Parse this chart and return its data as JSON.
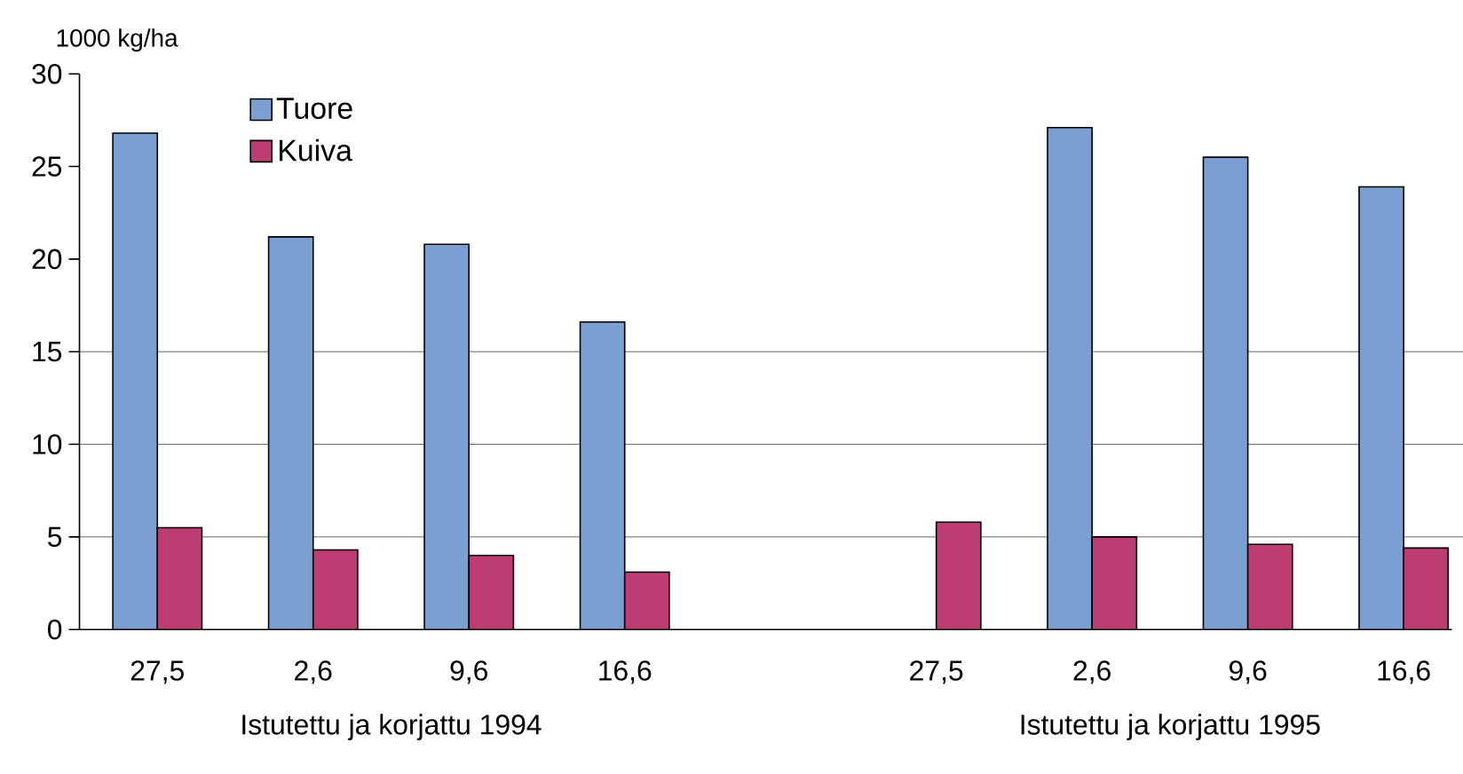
{
  "chart_data": {
    "type": "bar",
    "ylabel": "1000 kg/ha",
    "categories": [
      "27,5",
      "2,6",
      "9,6",
      "16,6",
      null,
      "27,5",
      "2,6",
      "9,6",
      "16,6"
    ],
    "series": [
      {
        "name": "Tuore",
        "color": "#7b9fd1",
        "values": [
          26.8,
          21.2,
          20.8,
          16.6,
          null,
          null,
          27.1,
          25.5,
          23.9
        ]
      },
      {
        "name": "Kuiva",
        "color": "#bd3c71",
        "values": [
          5.5,
          4.3,
          4.0,
          3.1,
          null,
          5.8,
          5.0,
          4.6,
          4.4
        ]
      }
    ],
    "ylim": [
      0,
      30
    ],
    "yticks": [
      0,
      5,
      10,
      15,
      20,
      25,
      30
    ],
    "ref_lines": [
      {
        "axis": "y",
        "value": 5,
        "color": "#404040"
      },
      {
        "axis": "y",
        "value": 10,
        "color": "#404040"
      },
      {
        "axis": "y",
        "value": 15,
        "color": "#404040"
      }
    ],
    "legend": "top left",
    "annotations": [
      "Istutettu ja korjattu 1994",
      "Istutettu ja korjattu 1995"
    ]
  }
}
